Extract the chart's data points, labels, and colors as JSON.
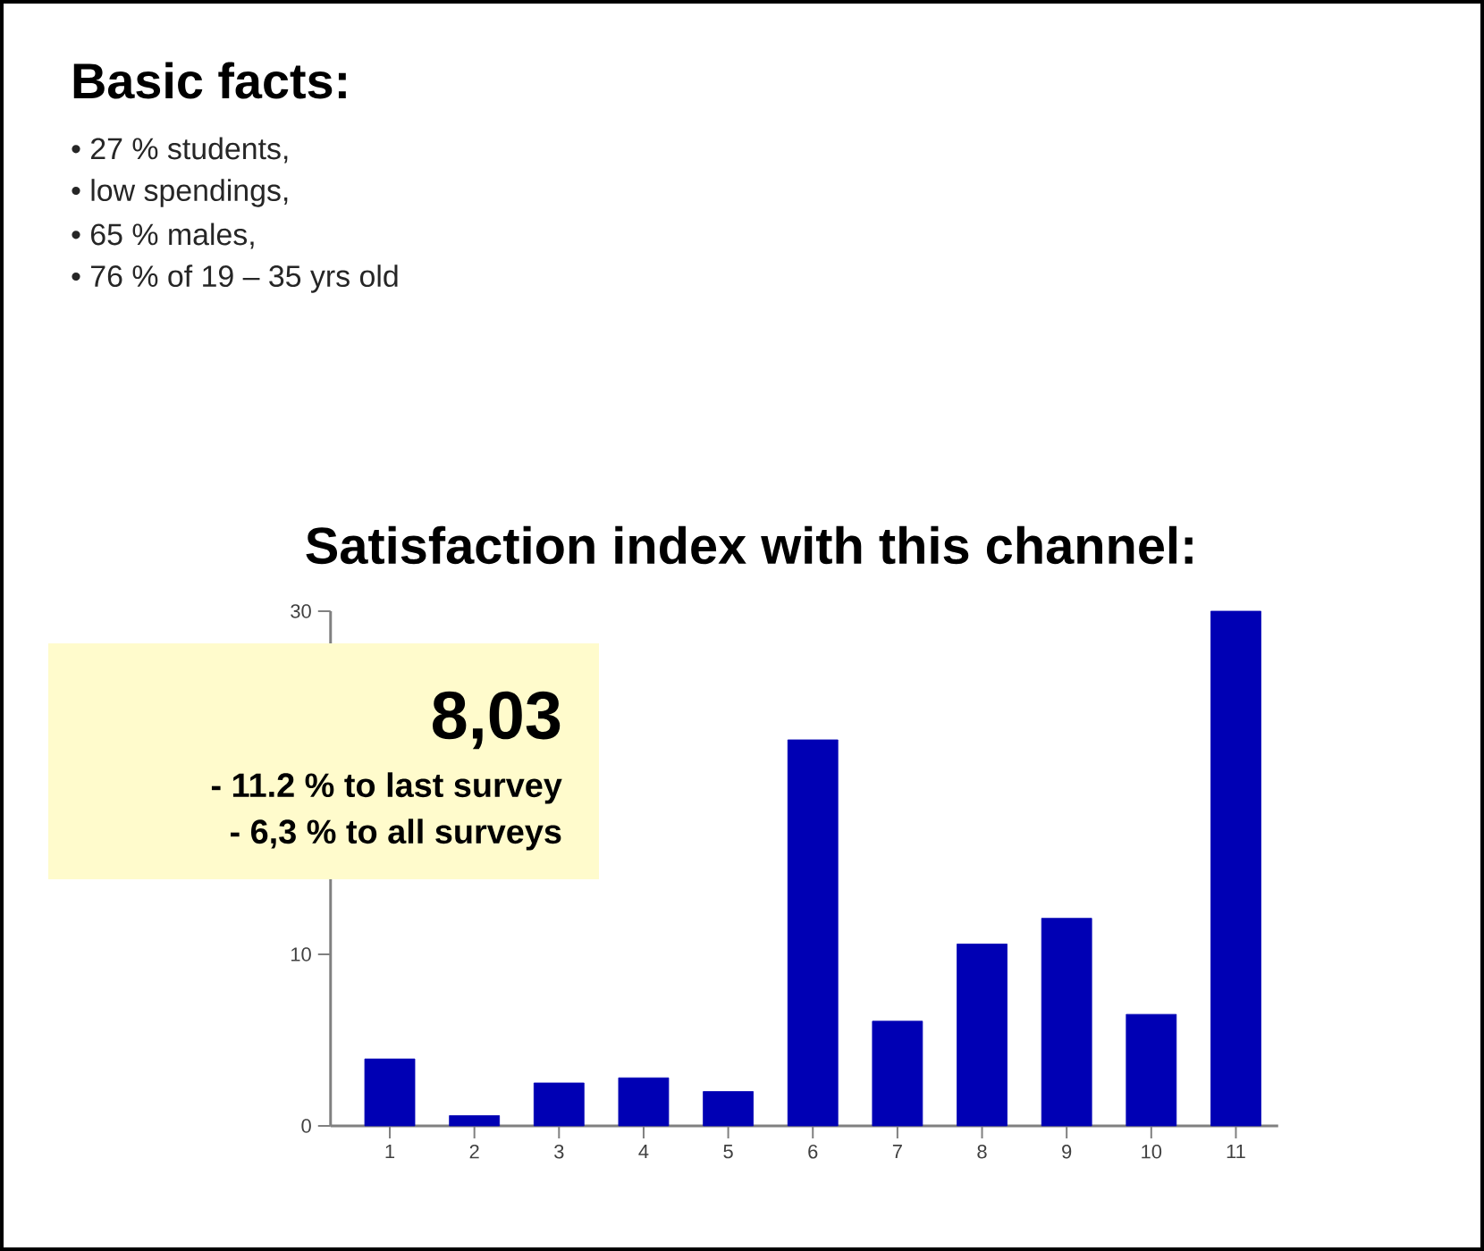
{
  "chart_data": {
    "type": "bar",
    "title": "Satisfaction index with this channel:",
    "categories": [
      "1",
      "2",
      "3",
      "4",
      "5",
      "6",
      "7",
      "8",
      "9",
      "10",
      "11"
    ],
    "values": [
      3.9,
      0.6,
      2.5,
      2.8,
      2.0,
      22.5,
      6.1,
      10.6,
      12.1,
      6.5,
      30
    ],
    "color": "#0000b4",
    "ylim": [
      0,
      30
    ],
    "yticks": [
      0,
      10,
      30
    ],
    "annotations": [
      "Basic facts:",
      "•  27 % students,",
      "•  low spendings,",
      "•  65 % males,",
      "•  76 % of 19 – 35 yrs old",
      "8,03",
      "- 11.2 % to last survey",
      "- 6,3 % to all surveys"
    ]
  }
}
